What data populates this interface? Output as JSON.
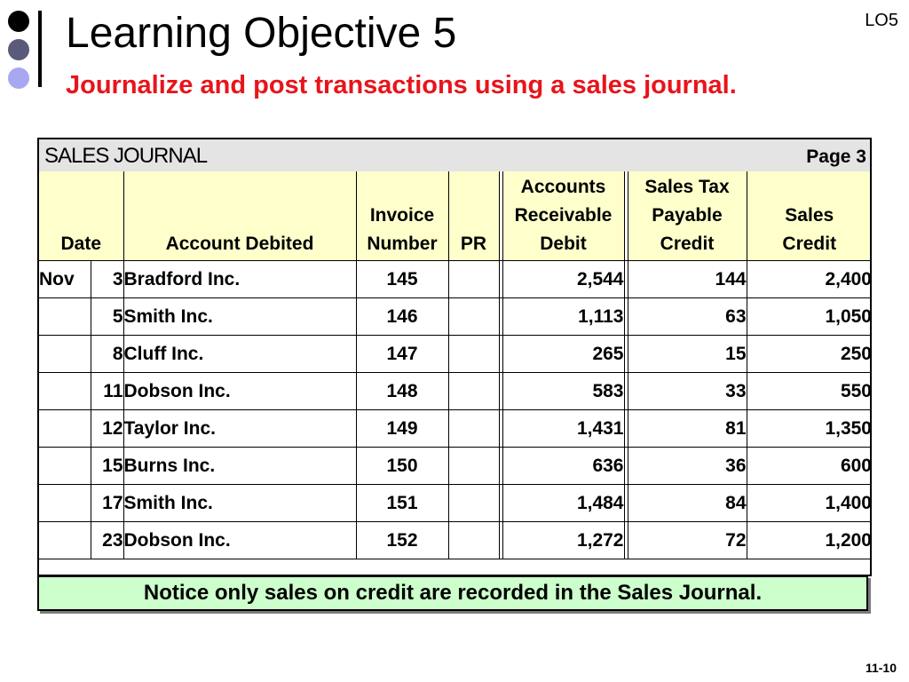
{
  "slide": {
    "title": "Learning Objective 5",
    "subtitle": "Journalize and post transactions using a sales journal.",
    "lo_tag": "LO5",
    "page_number": "11-10"
  },
  "journal": {
    "title": "SALES JOURNAL",
    "page": "Page 3",
    "headers": {
      "date": "Date",
      "account": "Account Debited",
      "invoice": [
        "Invoice",
        "Number"
      ],
      "pr": "PR",
      "ar_debit": [
        "Accounts",
        "Receivable",
        "Debit"
      ],
      "tax_credit": [
        "Sales Tax",
        "Payable",
        "Credit"
      ],
      "sales_credit": [
        "Sales",
        "Credit"
      ]
    },
    "rows": [
      {
        "month": "Nov",
        "day": "3",
        "account": "Bradford Inc.",
        "invoice": "145",
        "pr": "",
        "ar": "2,544",
        "tax": "144",
        "sales": "2,400"
      },
      {
        "month": "",
        "day": "5",
        "account": "Smith Inc.",
        "invoice": "146",
        "pr": "",
        "ar": "1,113",
        "tax": "63",
        "sales": "1,050"
      },
      {
        "month": "",
        "day": "8",
        "account": "Cluff Inc.",
        "invoice": "147",
        "pr": "",
        "ar": "265",
        "tax": "15",
        "sales": "250"
      },
      {
        "month": "",
        "day": "11",
        "account": "Dobson Inc.",
        "invoice": "148",
        "pr": "",
        "ar": "583",
        "tax": "33",
        "sales": "550"
      },
      {
        "month": "",
        "day": "12",
        "account": "Taylor Inc.",
        "invoice": "149",
        "pr": "",
        "ar": "1,431",
        "tax": "81",
        "sales": "1,350"
      },
      {
        "month": "",
        "day": "15",
        "account": "Burns Inc.",
        "invoice": "150",
        "pr": "",
        "ar": "636",
        "tax": "36",
        "sales": "600"
      },
      {
        "month": "",
        "day": "17",
        "account": "Smith Inc.",
        "invoice": "151",
        "pr": "",
        "ar": "1,484",
        "tax": "84",
        "sales": "1,400"
      },
      {
        "month": "",
        "day": "23",
        "account": "Dobson Inc.",
        "invoice": "152",
        "pr": "",
        "ar": "1,272",
        "tax": "72",
        "sales": "1,200"
      }
    ]
  },
  "note": "Notice only sales on credit are recorded in the Sales Journal."
}
